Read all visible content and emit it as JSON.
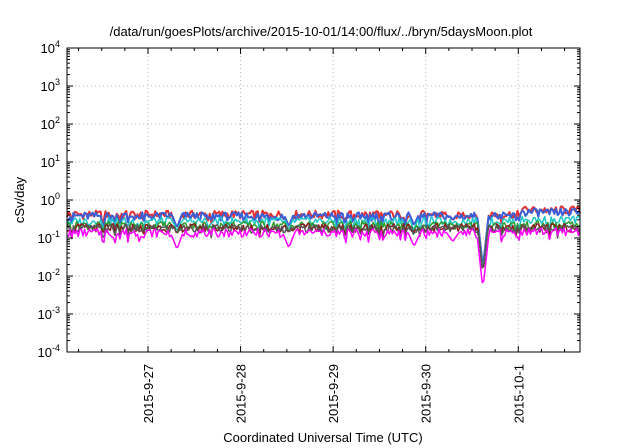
{
  "chart_data": {
    "type": "line",
    "title": "/data/run/goesPlots/archive/2015-10-01/14:00/flux/../bryn/5daysMoon.plot",
    "xlabel": "Coordinated Universal Time (UTC)",
    "ylabel": "cSv/day",
    "yscale": "log",
    "ylim": [
      0.0001,
      10000
    ],
    "y_ticks": [
      {
        "base": "10",
        "exp": "4",
        "value": 10000
      },
      {
        "base": "10",
        "exp": "3",
        "value": 1000
      },
      {
        "base": "10",
        "exp": "2",
        "value": 100
      },
      {
        "base": "10",
        "exp": "1",
        "value": 10
      },
      {
        "base": "10",
        "exp": "0",
        "value": 1
      },
      {
        "base": "10",
        "exp": "-1",
        "value": 0.1
      },
      {
        "base": "10",
        "exp": "-2",
        "value": 0.01
      },
      {
        "base": "10",
        "exp": "-3",
        "value": 0.001
      },
      {
        "base": "10",
        "exp": "-4",
        "value": 0.0001
      }
    ],
    "xlim": [
      "2015-09-26T03:00",
      "2015-10-01T16:00"
    ],
    "x_ticks": [
      {
        "label": "2015-9-27",
        "x": "2015-09-27T00:00"
      },
      {
        "label": "2015-9-28",
        "x": "2015-09-28T00:00"
      },
      {
        "label": "2015-9-29",
        "x": "2015-09-29T00:00"
      },
      {
        "label": "2015-9-30",
        "x": "2015-09-30T00:00"
      },
      {
        "label": "2015-10-1",
        "x": "2015-10-01T00:00"
      }
    ],
    "grid": true,
    "series": [
      {
        "color": "#e53030",
        "level_before": 0.42,
        "level_after": 0.55
      },
      {
        "color": "#3a5fd9",
        "level_before": 0.38,
        "level_after": 0.48
      },
      {
        "color": "#1ec8c8",
        "level_before": 0.28,
        "level_after": 0.3
      },
      {
        "color": "#2e9b2e",
        "level_before": 0.22,
        "level_after": 0.22
      },
      {
        "color": "#8a1a1a",
        "level_before": 0.19,
        "level_after": 0.19
      },
      {
        "color": "#555555",
        "level_before": 0.18,
        "level_after": 0.18
      },
      {
        "color": "#ff00ff",
        "level_before": 0.14,
        "level_after": 0.15
      }
    ],
    "step_time": "2015-09-30T23:50",
    "dips": [
      {
        "x": "2015-09-26T15:00",
        "y": 0.1
      },
      {
        "x": "2015-09-27T07:30",
        "y": 0.05
      },
      {
        "x": "2015-09-28T12:30",
        "y": 0.055
      },
      {
        "x": "2015-09-29T21:00",
        "y": 0.06
      },
      {
        "x": "2015-09-30T07:00",
        "y": 0.08
      },
      {
        "x": "2015-09-30T14:50",
        "y": 0.0045
      }
    ]
  }
}
